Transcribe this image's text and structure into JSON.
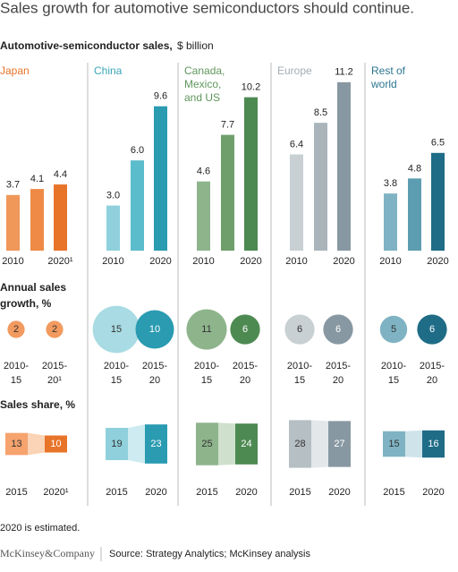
{
  "title": "Sales growth for automotive semiconductors should continue.",
  "sales_label": "Automotive-semiconductor sales,",
  "sales_unit": "$ billion",
  "growth_label": [
    "Annual sales",
    "growth, %"
  ],
  "share_label": "Sales share, %",
  "regions": [
    {
      "name": [
        "Japan"
      ],
      "name_color": "#e8742a",
      "sales": {
        "categories": [
          "2010",
          null,
          "2020¹"
        ],
        "values": [
          3.7,
          4.1,
          4.4
        ],
        "value_labels": [
          "3.7",
          "4.1",
          "4.4"
        ],
        "colors": [
          "#f0975a",
          "#ee8a45",
          "#e8742a"
        ]
      },
      "growth": {
        "labels": [
          [
            "2010-",
            "15"
          ],
          [
            "2015-",
            "20¹"
          ]
        ],
        "values": [
          2,
          2
        ],
        "colors": [
          "#f29a5f",
          "#f29a5f"
        ]
      },
      "share": {
        "labels": [
          "2015",
          "2020¹"
        ],
        "values": [
          13,
          10
        ],
        "colors": [
          "#f6a36e",
          "#e8742a"
        ],
        "band": "#fbd3b6"
      }
    },
    {
      "name": [
        "China"
      ],
      "name_color": "#3aa6b9",
      "sales": {
        "categories": [
          "2010",
          null,
          "2020"
        ],
        "values": [
          3.0,
          6.0,
          9.6
        ],
        "value_labels": [
          "3.0",
          "6.0",
          "9.6"
        ],
        "colors": [
          "#8fd0dc",
          "#5bbccc",
          "#2a9bb0"
        ]
      },
      "growth": {
        "labels": [
          [
            "2010-",
            "15"
          ],
          [
            "2015-",
            "20"
          ]
        ],
        "values": [
          15,
          10
        ],
        "colors": [
          "#a8dbe3",
          "#2a9bb0"
        ]
      },
      "share": {
        "labels": [
          "2015",
          "2020"
        ],
        "values": [
          19,
          23
        ],
        "colors": [
          "#8fd0dc",
          "#2a9bb0"
        ],
        "band": "#cdebf0"
      }
    },
    {
      "name": [
        "Canada,",
        "Mexico,",
        "and US"
      ],
      "name_color": "#5f965c",
      "sales": {
        "categories": [
          "2010",
          null,
          "2020"
        ],
        "values": [
          4.6,
          7.7,
          10.2
        ],
        "value_labels": [
          "4.6",
          "7.7",
          "10.2"
        ],
        "colors": [
          "#8eb48c",
          "#6fa06c",
          "#4d8a52"
        ]
      },
      "growth": {
        "labels": [
          [
            "2010-",
            "15"
          ],
          [
            "2015-",
            "20"
          ]
        ],
        "values": [
          11,
          6
        ],
        "colors": [
          "#8eb48c",
          "#4d8a52"
        ]
      },
      "share": {
        "labels": [
          "2015",
          "2020"
        ],
        "values": [
          25,
          24
        ],
        "colors": [
          "#8eb48c",
          "#4d8a52"
        ],
        "band": "#cfe0cd"
      }
    },
    {
      "name": [
        "Europe"
      ],
      "name_color": "#a3adb3",
      "sales": {
        "categories": [
          "2010",
          null,
          "2020"
        ],
        "values": [
          6.4,
          8.5,
          11.2
        ],
        "value_labels": [
          "6.4",
          "8.5",
          "11.2"
        ],
        "colors": [
          "#c8d0d3",
          "#aab5bb",
          "#8898a2"
        ]
      },
      "growth": {
        "labels": [
          [
            "2010-",
            "15"
          ],
          [
            "2015-",
            "20"
          ]
        ],
        "values": [
          6,
          6
        ],
        "colors": [
          "#c8d0d3",
          "#8898a2"
        ]
      },
      "share": {
        "labels": [
          "2015",
          "2020"
        ],
        "values": [
          28,
          27
        ],
        "colors": [
          "#b5bfc4",
          "#8898a2"
        ],
        "band": "#e3e7e9"
      }
    },
    {
      "name": [
        "Rest of",
        "world"
      ],
      "name_color": "#2c7590",
      "sales": {
        "categories": [
          "2010",
          null,
          "2020"
        ],
        "values": [
          3.8,
          4.8,
          6.5
        ],
        "value_labels": [
          "3.8",
          "4.8",
          "6.5"
        ],
        "colors": [
          "#7fb3c3",
          "#5c9db1",
          "#1f6c87"
        ]
      },
      "growth": {
        "labels": [
          [
            "2010-",
            "15"
          ],
          [
            "2015-",
            "20"
          ]
        ],
        "values": [
          5,
          6
        ],
        "colors": [
          "#7fb3c3",
          "#1f6c87"
        ]
      },
      "share": {
        "labels": [
          "2015",
          "2020"
        ],
        "values": [
          15,
          16
        ],
        "colors": [
          "#7fb3c3",
          "#1f6c87"
        ],
        "band": "#cfe3ea"
      }
    }
  ],
  "footnote": "2020 is estimated.",
  "brand": "McKinsey&Company",
  "source": "Source: Strategy Analytics; McKinsey analysis"
}
